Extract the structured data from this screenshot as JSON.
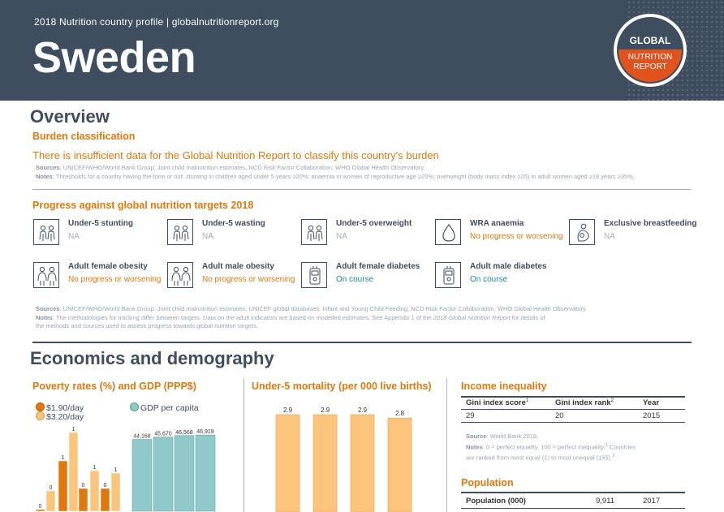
{
  "header": {
    "kicker": "2018 Nutrition country profile  |  globalnutritionreport.org",
    "country": "Sweden",
    "logo_top": "GLOBAL",
    "logo_bottom_1": "NUTRITION",
    "logo_bottom_2": "REPORT"
  },
  "overview": {
    "title": "Overview",
    "burden_heading": "Burden classification",
    "burden_text": "There is insufficient data for the Global Nutrition Report to classify this country's burden",
    "sources_label": "Sources",
    "sources_text": ": UNICEF/WHO/World Bank Group: Joint child malnutrition estimates, NCD Risk Factor Collaboration, WHO Global Health Observatory.",
    "notes_label": "Notes",
    "notes_text": ": Thresholds for a country having the form or not: stunting in children aged under 5 years ≥20%; anaemia in women of reproductive age ≥20%; overweight (body mass index ≥25) in adult women aged ≥18 years ≥35%."
  },
  "progress": {
    "heading": "Progress against global nutrition targets 2018",
    "indicators": [
      {
        "name": "Under-5 stunting",
        "status": "NA",
        "kind": "na",
        "icon": "children-icon"
      },
      {
        "name": "Under-5 wasting",
        "status": "NA",
        "kind": "na",
        "icon": "children-icon"
      },
      {
        "name": "Under-5 overweight",
        "status": "NA",
        "kind": "na",
        "icon": "children-icon"
      },
      {
        "name": "WRA anaemia",
        "status": "No progress or worsening",
        "kind": "bad",
        "icon": "blood-drop-icon"
      },
      {
        "name": "Exclusive breastfeeding",
        "status": "NA",
        "kind": "na",
        "icon": "breastfeeding-icon"
      },
      {
        "name": "Adult female obesity",
        "status": "No progress or worsening",
        "kind": "bad",
        "icon": "adults-icon"
      },
      {
        "name": "Adult male obesity",
        "status": "No progress or worsening",
        "kind": "bad",
        "icon": "adults-icon"
      },
      {
        "name": "Adult female diabetes",
        "status": "On course",
        "kind": "good",
        "icon": "glucose-meter-icon"
      },
      {
        "name": "Adult male diabetes",
        "status": "On course",
        "kind": "good",
        "icon": "glucose-meter-icon"
      }
    ],
    "sources_label": "Sources",
    "sources_text": ": UNICEF/WHO/World Bank Group: Joint child malnutrition estimates, UNICEF global databases: Infant and Young Child Feeding, NCD Risk Factor Collaboration, WHO Global Health Observatory.",
    "notes_label": "Notes",
    "notes_text_1": ": The methodologies for tracking differ between targets. Data on the adult indicators are based on modelled estimates. See Appendix 1 of the ",
    "notes_italic": "2018 Global Nutrition Report",
    "notes_text_2": " for details of",
    "notes_text_3": "the methods and sources used to assess progress towards global nutrition targets."
  },
  "economics": {
    "title": "Economics and demography",
    "poverty_heading": "Poverty rates (%) and GDP (PPP$)",
    "mortality_heading": "Under-5 mortality (per 000 live births)",
    "income_heading": "Income inequality",
    "gini_headers": [
      "Gini index score",
      "Gini index rank",
      "Year"
    ],
    "gini_header_sups": [
      "1",
      "2",
      ""
    ],
    "gini_values": [
      "29",
      "20",
      "2015"
    ],
    "income_source_label": "Source",
    "income_source_text": ": World Bank 2018.",
    "income_notes_label": "Notes",
    "income_notes_text_1": ": 0 = perfect equality, 100 = perfect inequality.",
    "income_notes_sup_1": "1",
    "income_notes_text_1b": " Countries",
    "income_notes_text_2": "are ranked from most equal (1) to most unequal (155).",
    "income_notes_sup_2": "2",
    "population_heading": "Population",
    "population_label": "Population (000)",
    "population_value": "9,911",
    "population_year": "2017"
  },
  "chart_data": [
    {
      "type": "bar",
      "title": "Poverty rates (%) and GDP (PPP$)",
      "series": [
        {
          "name": "$1.90/day",
          "values": [
            0,
            1,
            0,
            0
          ],
          "labels": [
            "0",
            "1",
            "0",
            "0"
          ]
        },
        {
          "name": "$3.20/day",
          "values": [
            0,
            1,
            1,
            1
          ],
          "labels": [
            "0",
            "1",
            "1",
            "1"
          ]
        }
      ],
      "series_right": {
        "name": "GDP per capita",
        "values": [
          44168,
          45670,
          46568,
          46919
        ],
        "labels": [
          "44,168",
          "45,670",
          "46,568",
          "46,919"
        ]
      },
      "legend": "top-left",
      "colors": {
        "s190": "#e0780d",
        "s320": "#fdc57c",
        "gdp": "#8fc9c9"
      }
    },
    {
      "type": "bar",
      "title": "Under-5 mortality (per 000 live births)",
      "values": [
        2.9,
        2.9,
        2.9,
        2.8
      ],
      "labels": [
        "2.9",
        "2.9",
        "2.9",
        "2.8"
      ],
      "colors": {
        "bar": "#fdc57c"
      }
    }
  ]
}
